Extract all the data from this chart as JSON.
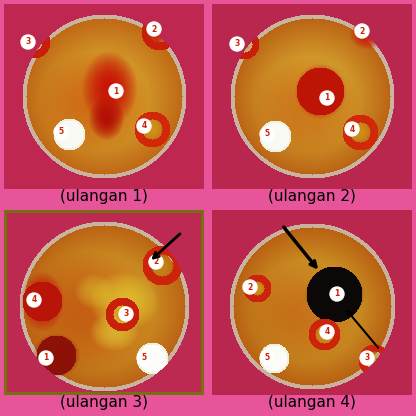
{
  "background_color": "#e8549a",
  "captions": [
    "(ulangan 1)",
    "(ulangan 2)",
    "(ulangan 3)",
    "(ulangan 4)"
  ],
  "caption_fontsize": 11,
  "caption_color": "#000000",
  "number_circle_color": "#ffffff",
  "number_text_color": "#cc2200",
  "number_fontsize": 5,
  "panel_bg": "#c0305a",
  "dish_yellow": [
    220,
    190,
    40
  ],
  "dish_orange": [
    200,
    100,
    20
  ],
  "dish_red": [
    180,
    30,
    10
  ],
  "blob_red": [
    200,
    20,
    5
  ],
  "white_circle": [
    240,
    240,
    230
  ],
  "black_blob": [
    15,
    10,
    10
  ],
  "magenta_bg": [
    232,
    84,
    154
  ]
}
